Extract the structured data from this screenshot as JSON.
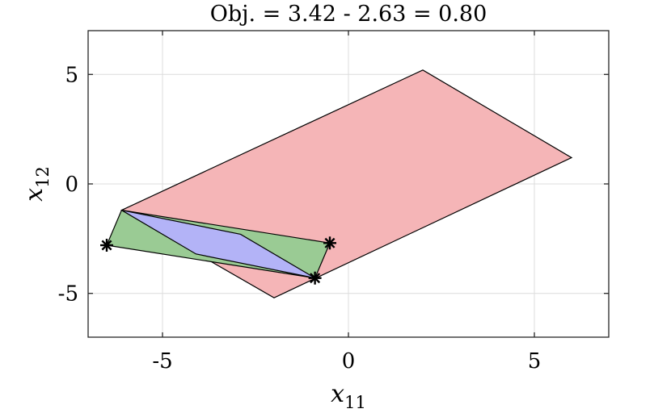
{
  "chart_data": {
    "type": "polygon-plot",
    "title": "Obj. = 3.42 - 2.63 = 0.80",
    "xlabel": {
      "base": "x",
      "sub": "11"
    },
    "ylabel": {
      "base": "x",
      "sub": "12"
    },
    "xlim": [
      -7,
      7
    ],
    "ylim": [
      -7,
      7
    ],
    "xticks": [
      -5,
      0,
      5
    ],
    "yticks": [
      -5,
      0,
      5
    ],
    "xtick_labels": [
      "-5",
      "0",
      "5"
    ],
    "ytick_labels": [
      "-5",
      "0",
      "5"
    ],
    "grid": true,
    "polygons": [
      {
        "color": "#f5b5b7",
        "points": [
          [
            -6.1,
            -1.2
          ],
          [
            2.0,
            5.2
          ],
          [
            6.0,
            1.2
          ],
          [
            -2.0,
            -5.2
          ]
        ]
      },
      {
        "color": "#9acb94",
        "points": [
          [
            -6.5,
            -2.8
          ],
          [
            -6.1,
            -1.2
          ],
          [
            -0.5,
            -2.7
          ],
          [
            -0.9,
            -4.3
          ]
        ]
      },
      {
        "color": "#b3b3f7",
        "points": [
          [
            -6.1,
            -1.2
          ],
          [
            -2.9,
            -2.3
          ],
          [
            -0.9,
            -4.3
          ],
          [
            -4.1,
            -3.2
          ]
        ]
      }
    ],
    "markers": {
      "symbol": "asterisk",
      "points": [
        [
          -6.5,
          -2.8
        ],
        [
          -0.5,
          -2.7
        ],
        [
          -0.9,
          -4.3
        ]
      ]
    }
  }
}
